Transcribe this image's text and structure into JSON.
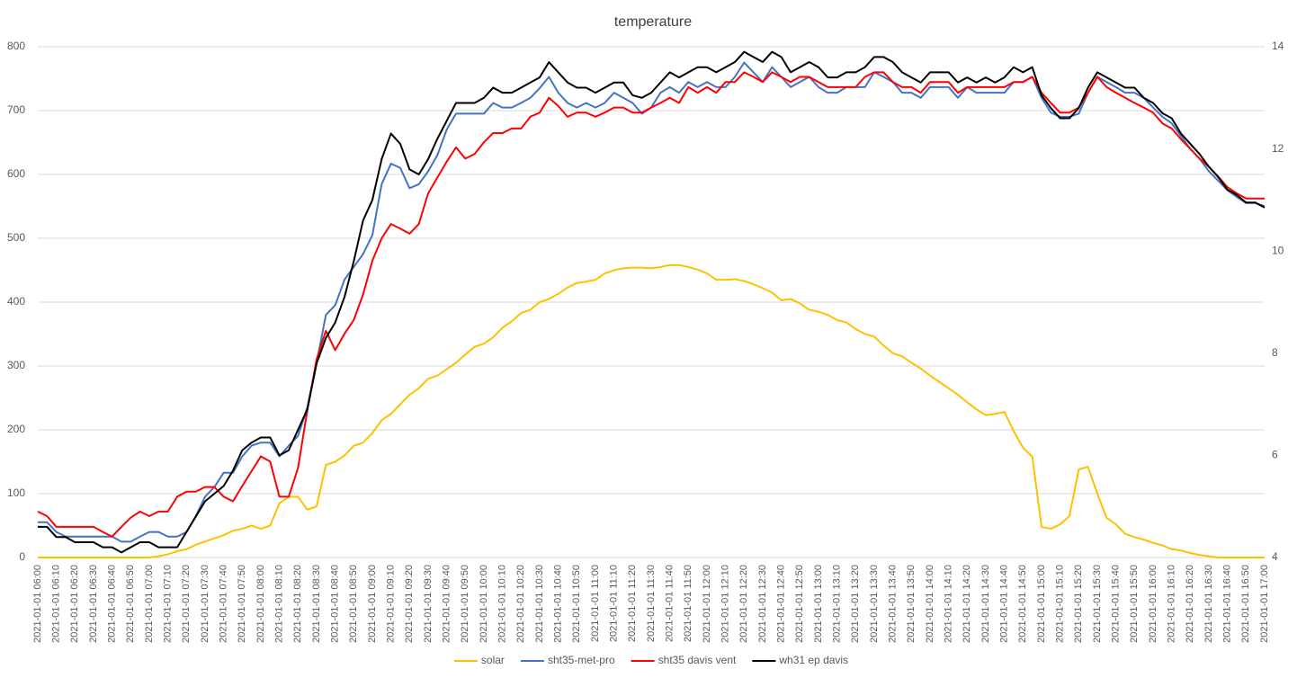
{
  "chart_data": {
    "type": "line",
    "title": "temperature",
    "categories": [
      "2021-01-01 06:00",
      null,
      "2021-01-01 06:10",
      null,
      "2021-01-01 06:20",
      null,
      "2021-01-01 06:30",
      null,
      "2021-01-01 06:40",
      null,
      "2021-01-01 06:50",
      null,
      "2021-01-01 07:00",
      null,
      "2021-01-01 07:10",
      null,
      "2021-01-01 07:20",
      null,
      "2021-01-01 07:30",
      null,
      "2021-01-01 07:40",
      null,
      "2021-01-01 07:50",
      null,
      "2021-01-01 08:00",
      null,
      "2021-01-01 08:10",
      null,
      "2021-01-01 08:20",
      null,
      "2021-01-01 08:30",
      null,
      "2021-01-01 08:40",
      null,
      "2021-01-01 08:50",
      null,
      "2021-01-01 09:00",
      null,
      "2021-01-01 09:10",
      null,
      "2021-01-01 09:20",
      null,
      "2021-01-01 09:30",
      null,
      "2021-01-01 09:40",
      null,
      "2021-01-01 09:50",
      null,
      "2021-01-01 10:00",
      null,
      "2021-01-01 10:10",
      null,
      "2021-01-01 10:20",
      null,
      "2021-01-01 10:30",
      null,
      "2021-01-01 10:40",
      null,
      "2021-01-01 10:50",
      null,
      "2021-01-01 11:00",
      null,
      "2021-01-01 11:10",
      null,
      "2021-01-01 11:20",
      null,
      "2021-01-01 11:30",
      null,
      "2021-01-01 11:40",
      null,
      "2021-01-01 11:50",
      null,
      "2021-01-01 12:00",
      null,
      "2021-01-01 12:10",
      null,
      "2021-01-01 12:20",
      null,
      "2021-01-01 12:30",
      null,
      "2021-01-01 12:40",
      null,
      "2021-01-01 12:50",
      null,
      "2021-01-01 13:00",
      null,
      "2021-01-01 13:10",
      null,
      "2021-01-01 13:20",
      null,
      "2021-01-01 13:30",
      null,
      "2021-01-01 13:40",
      null,
      "2021-01-01 13:50",
      null,
      "2021-01-01 14:00",
      null,
      "2021-01-01 14:10",
      null,
      "2021-01-01 14:20",
      null,
      "2021-01-01 14:30",
      null,
      "2021-01-01 14:40",
      null,
      "2021-01-01 14:50",
      null,
      "2021-01-01 15:00",
      null,
      "2021-01-01 15:10",
      null,
      "2021-01-01 15:20",
      null,
      "2021-01-01 15:30",
      null,
      "2021-01-01 15:40",
      null,
      "2021-01-01 15:50",
      null,
      "2021-01-01 16:00",
      null,
      "2021-01-01 16:10",
      null,
      "2021-01-01 16:20",
      null,
      "2021-01-01 16:30",
      null,
      "2021-01-01 16:40",
      null,
      "2021-01-01 16:50",
      null,
      "2021-01-01 17:00"
    ],
    "series": [
      {
        "name": "solar",
        "color": "#ffc000",
        "values": [
          0,
          0,
          0,
          0,
          0,
          0,
          0,
          0,
          0,
          0,
          0,
          0,
          0,
          2,
          5,
          10,
          13,
          20,
          25,
          30,
          35,
          42,
          45,
          50,
          45,
          50,
          85,
          95,
          95,
          75,
          80,
          145,
          150,
          160,
          175,
          180,
          195,
          215,
          225,
          240,
          255,
          265,
          280,
          285,
          295,
          305,
          318,
          330,
          335,
          345,
          360,
          370,
          383,
          388,
          400,
          405,
          413,
          423,
          430,
          432,
          435,
          445,
          450,
          453,
          454,
          454,
          453,
          455,
          458,
          458,
          455,
          451,
          445,
          435,
          435,
          436,
          433,
          428,
          422,
          415,
          403,
          405,
          398,
          388,
          385,
          380,
          372,
          368,
          358,
          350,
          346,
          332,
          320,
          315,
          305,
          296,
          285,
          275,
          265,
          255,
          243,
          232,
          223,
          225,
          228,
          198,
          172,
          158,
          48,
          45,
          52,
          65,
          138,
          142,
          100,
          62,
          52,
          37,
          32,
          28,
          23,
          19,
          13,
          11,
          7,
          4,
          2,
          0,
          0,
          0,
          0,
          0,
          0
        ]
      },
      {
        "name": "sht35-met-pro",
        "color": "#4472c4",
        "axis": "y2",
        "values": [
          4.69,
          4.69,
          4.5,
          4.41,
          4.41,
          4.41,
          4.41,
          4.41,
          4.41,
          4.31,
          4.31,
          4.41,
          4.5,
          4.5,
          4.41,
          4.41,
          4.5,
          4.81,
          5.19,
          5.38,
          5.66,
          5.66,
          5.98,
          6.19,
          6.25,
          6.25,
          5.98,
          6.19,
          6.38,
          6.94,
          7.81,
          8.75,
          8.94,
          9.44,
          9.69,
          9.94,
          10.31,
          11.31,
          11.71,
          11.63,
          11.23,
          11.31,
          11.56,
          11.88,
          12.38,
          12.69,
          12.69,
          12.69,
          12.69,
          12.9,
          12.81,
          12.81,
          12.9,
          13.0,
          13.19,
          13.41,
          13.1,
          12.9,
          12.81,
          12.9,
          12.81,
          12.9,
          13.1,
          13.0,
          12.9,
          12.69,
          12.81,
          13.1,
          13.21,
          13.1,
          13.31,
          13.21,
          13.31,
          13.21,
          13.21,
          13.41,
          13.69,
          13.5,
          13.31,
          13.6,
          13.41,
          13.21,
          13.31,
          13.41,
          13.21,
          13.1,
          13.1,
          13.21,
          13.21,
          13.21,
          13.5,
          13.41,
          13.31,
          13.1,
          13.1,
          13.0,
          13.21,
          13.21,
          13.21,
          13.0,
          13.21,
          13.1,
          13.1,
          13.1,
          13.1,
          13.31,
          13.31,
          13.41,
          13.0,
          12.71,
          12.63,
          12.63,
          12.69,
          13.1,
          13.41,
          13.31,
          13.21,
          13.1,
          13.1,
          13.0,
          12.81,
          12.63,
          12.5,
          12.25,
          12.0,
          11.81,
          11.56,
          11.38,
          11.19,
          11.06,
          10.94,
          10.94,
          10.88
        ]
      },
      {
        "name": "sht35 davis vent",
        "color": "#ff0000",
        "axis": "y2",
        "values": [
          4.9,
          4.81,
          4.6,
          4.6,
          4.6,
          4.6,
          4.6,
          4.5,
          4.41,
          4.6,
          4.78,
          4.9,
          4.81,
          4.9,
          4.9,
          5.19,
          5.29,
          5.29,
          5.38,
          5.38,
          5.19,
          5.1,
          5.4,
          5.69,
          5.98,
          5.88,
          5.19,
          5.19,
          5.75,
          6.88,
          7.88,
          8.44,
          8.06,
          8.38,
          8.65,
          9.15,
          9.81,
          10.25,
          10.53,
          10.44,
          10.34,
          10.53,
          11.13,
          11.44,
          11.75,
          12.03,
          11.81,
          11.9,
          12.13,
          12.31,
          12.31,
          12.4,
          12.4,
          12.63,
          12.71,
          13.0,
          12.84,
          12.63,
          12.71,
          12.71,
          12.63,
          12.71,
          12.81,
          12.81,
          12.71,
          12.71,
          12.81,
          12.9,
          13.0,
          12.9,
          13.21,
          13.1,
          13.21,
          13.1,
          13.31,
          13.31,
          13.5,
          13.41,
          13.31,
          13.5,
          13.41,
          13.31,
          13.41,
          13.41,
          13.31,
          13.21,
          13.21,
          13.21,
          13.21,
          13.41,
          13.5,
          13.5,
          13.31,
          13.21,
          13.21,
          13.1,
          13.31,
          13.31,
          13.31,
          13.1,
          13.21,
          13.21,
          13.21,
          13.21,
          13.21,
          13.31,
          13.31,
          13.41,
          13.1,
          12.9,
          12.71,
          12.71,
          12.81,
          13.1,
          13.41,
          13.21,
          13.1,
          13.0,
          12.9,
          12.81,
          12.71,
          12.5,
          12.4,
          12.19,
          12.0,
          11.81,
          11.65,
          11.46,
          11.25,
          11.13,
          11.03,
          11.03,
          11.03
        ]
      },
      {
        "name": "wh31 ep davis",
        "color": "#000000",
        "axis": "y2",
        "values": [
          4.6,
          4.6,
          4.4,
          4.4,
          4.3,
          4.3,
          4.3,
          4.2,
          4.2,
          4.1,
          4.2,
          4.3,
          4.3,
          4.2,
          4.2,
          4.2,
          4.5,
          4.8,
          5.1,
          5.25,
          5.4,
          5.7,
          6.1,
          6.25,
          6.35,
          6.35,
          6.0,
          6.1,
          6.5,
          6.9,
          7.8,
          8.3,
          8.6,
          9.1,
          9.8,
          10.6,
          11.0,
          11.8,
          12.3,
          12.1,
          11.6,
          11.5,
          11.8,
          12.2,
          12.55,
          12.9,
          12.9,
          12.9,
          13.0,
          13.2,
          13.1,
          13.1,
          13.2,
          13.3,
          13.4,
          13.7,
          13.5,
          13.3,
          13.2,
          13.2,
          13.1,
          13.2,
          13.3,
          13.3,
          13.05,
          13.0,
          13.1,
          13.3,
          13.5,
          13.4,
          13.5,
          13.6,
          13.6,
          13.5,
          13.6,
          13.7,
          13.9,
          13.8,
          13.7,
          13.9,
          13.8,
          13.5,
          13.6,
          13.7,
          13.6,
          13.4,
          13.4,
          13.5,
          13.5,
          13.6,
          13.8,
          13.8,
          13.7,
          13.5,
          13.4,
          13.3,
          13.5,
          13.5,
          13.5,
          13.3,
          13.4,
          13.3,
          13.4,
          13.3,
          13.4,
          13.6,
          13.5,
          13.6,
          13.05,
          12.8,
          12.6,
          12.6,
          12.8,
          13.2,
          13.5,
          13.4,
          13.3,
          13.2,
          13.2,
          13.0,
          12.9,
          12.7,
          12.6,
          12.3,
          12.1,
          11.9,
          11.65,
          11.45,
          11.2,
          11.1,
          10.95,
          10.95,
          10.85
        ]
      }
    ],
    "ylim": [
      0,
      800
    ],
    "yticks": [
      0,
      100,
      200,
      300,
      400,
      500,
      600,
      700,
      800
    ],
    "y2lim": [
      4,
      14
    ],
    "y2ticks": [
      4,
      6,
      8,
      10,
      12,
      14
    ],
    "grid": true,
    "legend": "bottom"
  }
}
